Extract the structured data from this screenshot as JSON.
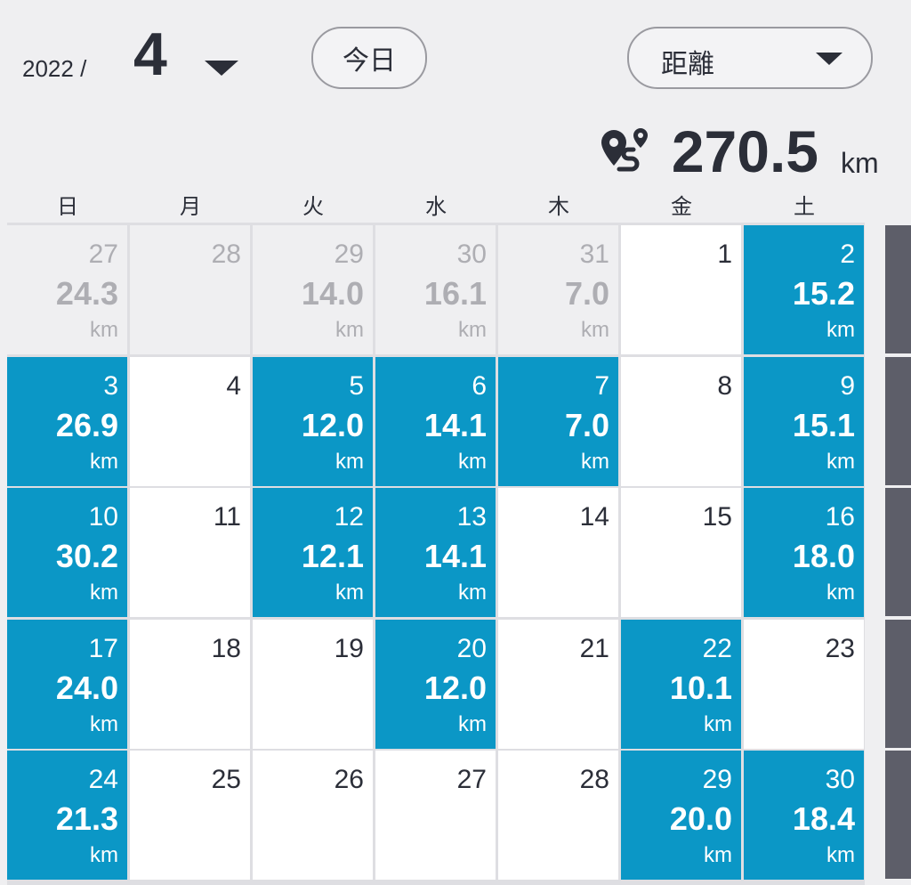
{
  "header": {
    "year": "2022 /",
    "month": "4",
    "today_button": "今日",
    "metric_select": "距離",
    "total": "270.5",
    "total_unit": "km"
  },
  "weekdays": [
    "日",
    "月",
    "火",
    "水",
    "木",
    "金",
    "土"
  ],
  "weeks": [
    [
      {
        "day": "27",
        "distance": "24.3",
        "unit": "km",
        "style": "other-month"
      },
      {
        "day": "28",
        "style": "other-month"
      },
      {
        "day": "29",
        "distance": "14.0",
        "unit": "km",
        "style": "other-month"
      },
      {
        "day": "30",
        "distance": "16.1",
        "unit": "km",
        "style": "other-month"
      },
      {
        "day": "31",
        "distance": "7.0",
        "unit": "km",
        "style": "other-month"
      },
      {
        "day": "1",
        "style": "rest"
      },
      {
        "day": "2",
        "distance": "15.2",
        "unit": "km",
        "style": "run"
      }
    ],
    [
      {
        "day": "3",
        "distance": "26.9",
        "unit": "km",
        "style": "run"
      },
      {
        "day": "4",
        "style": "rest"
      },
      {
        "day": "5",
        "distance": "12.0",
        "unit": "km",
        "style": "run"
      },
      {
        "day": "6",
        "distance": "14.1",
        "unit": "km",
        "style": "run"
      },
      {
        "day": "7",
        "distance": "7.0",
        "unit": "km",
        "style": "run"
      },
      {
        "day": "8",
        "style": "rest"
      },
      {
        "day": "9",
        "distance": "15.1",
        "unit": "km",
        "style": "run"
      }
    ],
    [
      {
        "day": "10",
        "distance": "30.2",
        "unit": "km",
        "style": "run"
      },
      {
        "day": "11",
        "style": "rest"
      },
      {
        "day": "12",
        "distance": "12.1",
        "unit": "km",
        "style": "run"
      },
      {
        "day": "13",
        "distance": "14.1",
        "unit": "km",
        "style": "run"
      },
      {
        "day": "14",
        "style": "rest"
      },
      {
        "day": "15",
        "style": "rest"
      },
      {
        "day": "16",
        "distance": "18.0",
        "unit": "km",
        "style": "run"
      }
    ],
    [
      {
        "day": "17",
        "distance": "24.0",
        "unit": "km",
        "style": "run"
      },
      {
        "day": "18",
        "style": "rest"
      },
      {
        "day": "19",
        "style": "rest"
      },
      {
        "day": "20",
        "distance": "12.0",
        "unit": "km",
        "style": "run"
      },
      {
        "day": "21",
        "style": "rest"
      },
      {
        "day": "22",
        "distance": "10.1",
        "unit": "km",
        "style": "run"
      },
      {
        "day": "23",
        "style": "rest"
      }
    ],
    [
      {
        "day": "24",
        "distance": "21.3",
        "unit": "km",
        "style": "run"
      },
      {
        "day": "25",
        "style": "rest"
      },
      {
        "day": "26",
        "style": "rest"
      },
      {
        "day": "27",
        "style": "rest"
      },
      {
        "day": "28",
        "style": "rest"
      },
      {
        "day": "29",
        "distance": "20.0",
        "unit": "km",
        "style": "run"
      },
      {
        "day": "30",
        "distance": "18.4",
        "unit": "km",
        "style": "run"
      }
    ]
  ]
}
